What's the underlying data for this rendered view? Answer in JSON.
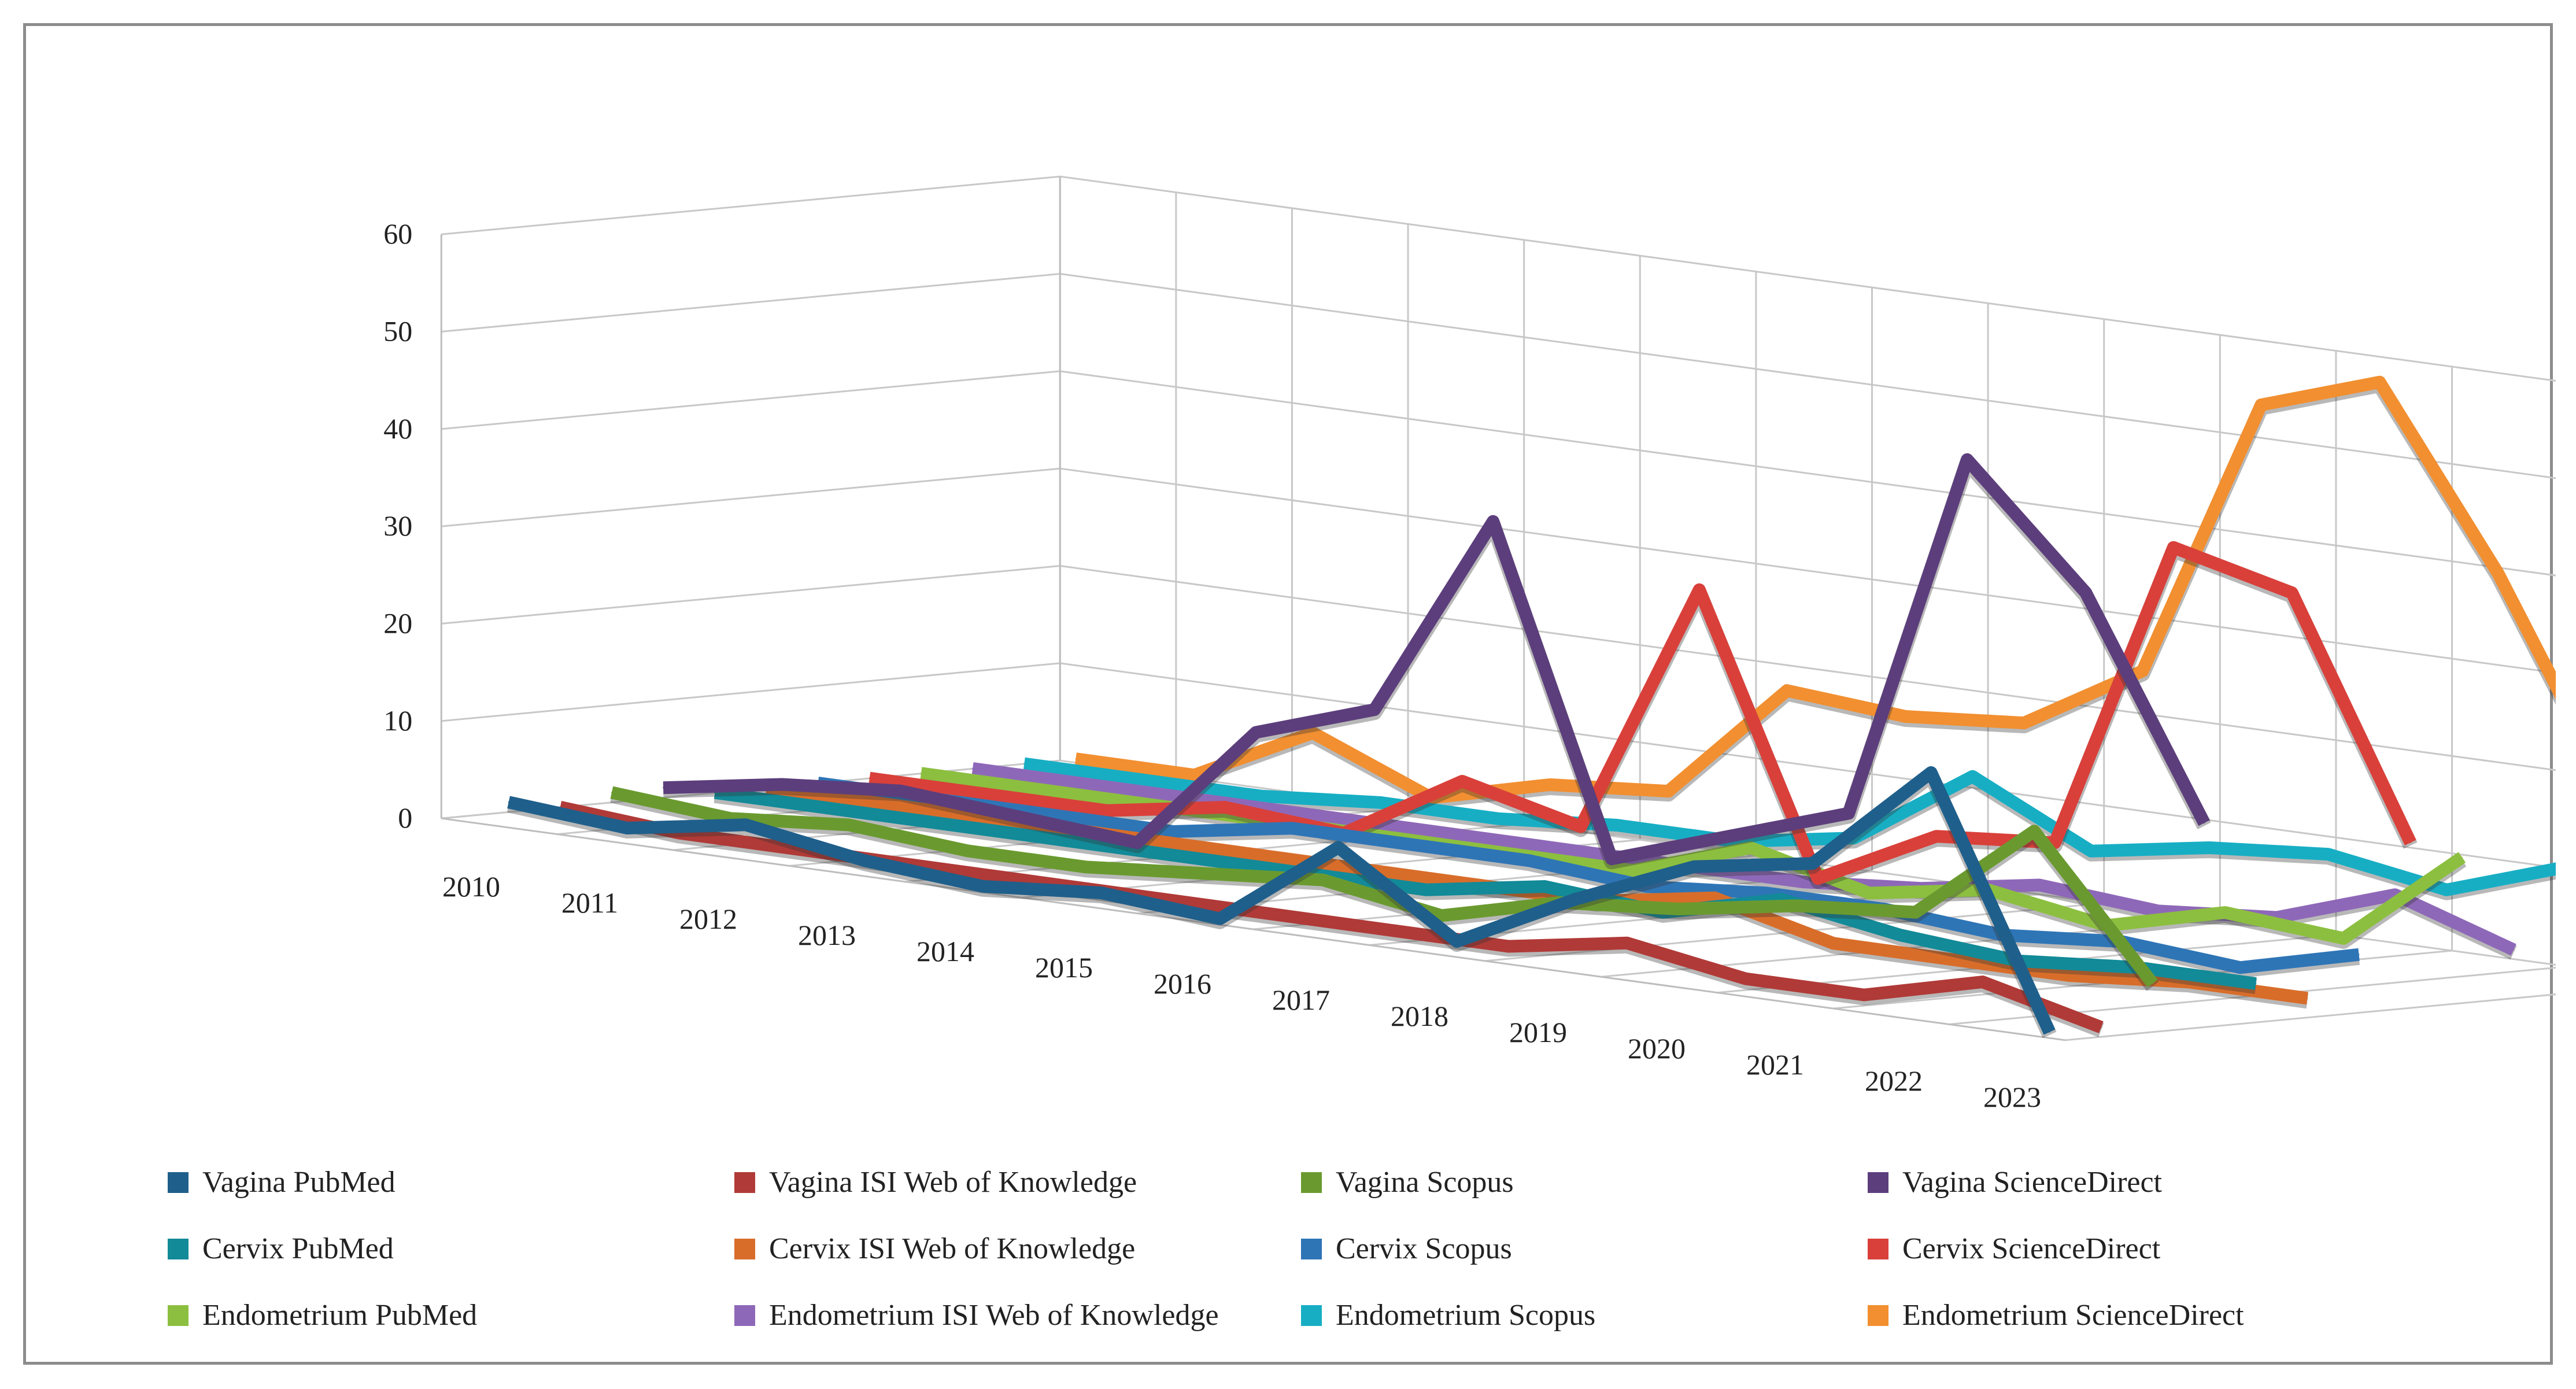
{
  "chart_data": {
    "type": "line",
    "style": "3d-ribbon",
    "title": "",
    "xlabel": "",
    "ylabel": "",
    "ylim": [
      0,
      60
    ],
    "y_ticks": [
      "0",
      "10",
      "20",
      "30",
      "40",
      "50",
      "60"
    ],
    "categories": [
      "2010",
      "2011",
      "2012",
      "2013",
      "2014",
      "2015",
      "2016",
      "2017",
      "2018",
      "2019",
      "2020",
      "2021",
      "2022",
      "2023"
    ],
    "legend_position": "bottom",
    "series": [
      {
        "name": "Vagina PubMed",
        "color": "#1f5f8b",
        "values": [
          2,
          1,
          3,
          1,
          0,
          1,
          0,
          9,
          1,
          7,
          12,
          14,
          25,
          0
        ]
      },
      {
        "name": "Vagina ISI Web of Knowledge",
        "color": "#b03a37",
        "values": [
          1,
          0,
          0,
          0,
          0,
          0,
          0,
          0,
          0,
          2,
          0,
          0,
          3,
          0
        ]
      },
      {
        "name": "Vagina Scopus",
        "color": "#6a9a2f",
        "values": [
          2,
          1,
          2,
          1,
          1,
          2,
          3,
          1,
          4,
          5,
          7,
          8,
          18,
          4
        ]
      },
      {
        "name": "Vagina ScienceDirect",
        "color": "#5c3e7c",
        "values": [
          2,
          4,
          5,
          4,
          3,
          16,
          20,
          41,
          8,
          12,
          16,
          54,
          42,
          20
        ]
      },
      {
        "name": "Cervix PubMed",
        "color": "#128a98",
        "values": [
          1,
          1,
          1,
          1,
          1,
          1,
          1,
          3,
          2,
          5,
          3,
          2,
          3,
          3
        ]
      },
      {
        "name": "Cervix ISI Web of Knowledge",
        "color": "#d86d2a",
        "values": [
          1,
          1,
          1,
          1,
          1,
          1,
          1,
          1,
          3,
          0,
          0,
          0,
          1,
          1
        ]
      },
      {
        "name": "Cervix Scopus",
        "color": "#2e75b6",
        "values": [
          1,
          1,
          1,
          1,
          3,
          3,
          3,
          2,
          3,
          3,
          2,
          3,
          2,
          5
        ]
      },
      {
        "name": "Cervix ScienceDirect",
        "color": "#d9403a",
        "values": [
          1,
          1,
          1,
          3,
          2,
          9,
          6,
          32,
          4,
          10,
          11,
          43,
          40,
          16
        ]
      },
      {
        "name": "Endometrium PubMed",
        "color": "#8cbf3f",
        "values": [
          1,
          1,
          1,
          1,
          1,
          1,
          1,
          5,
          2,
          4,
          2,
          5,
          4,
          14
        ]
      },
      {
        "name": "Endometrium ISI Web of Knowledge",
        "color": "#8e68b8",
        "values": [
          1,
          1,
          1,
          1,
          1,
          1,
          1,
          1,
          2,
          4,
          3,
          4,
          8,
          4
        ]
      },
      {
        "name": "Endometrium Scopus",
        "color": "#17aec4",
        "values": [
          1,
          1,
          1,
          2,
          2,
          3,
          3,
          5,
          13,
          7,
          9,
          10,
          8,
          12
        ]
      },
      {
        "name": "Endometrium ScienceDirect",
        "color": "#f28f30",
        "values": [
          1,
          1,
          7,
          2,
          5,
          6,
          18,
          17,
          18,
          25,
          54,
          58,
          40,
          18
        ]
      }
    ]
  }
}
